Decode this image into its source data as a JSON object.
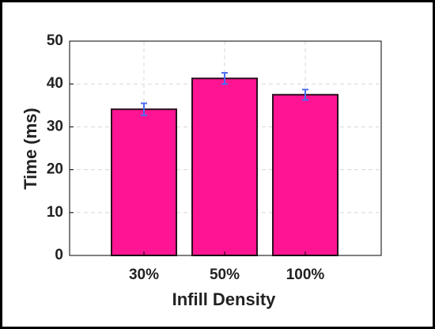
{
  "chart_data": {
    "type": "bar",
    "x_label": "Infill Density",
    "y_label": "Time (ms)",
    "categories": [
      "30%",
      "50%",
      "100%"
    ],
    "values": [
      34.1,
      41.3,
      37.5
    ],
    "errors": [
      1.4,
      1.3,
      1.2
    ],
    "color": "#ff1493",
    "edge_color": "#2b1020",
    "error_color": "#4a6cf0",
    "ylim": [
      0,
      50
    ],
    "yticks": [
      0,
      10,
      20,
      30,
      40,
      50
    ],
    "grid": true
  }
}
